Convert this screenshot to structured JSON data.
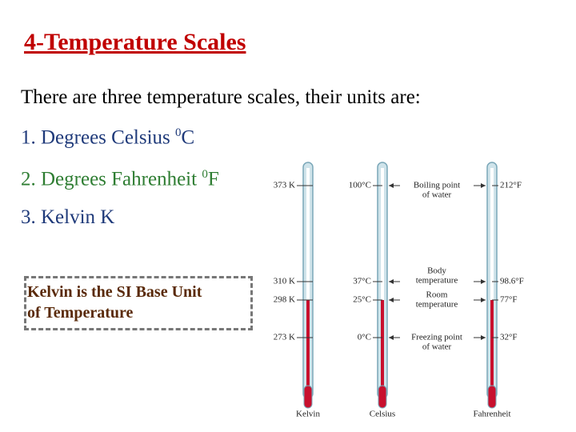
{
  "header": {
    "title": "4-Temperature Scales"
  },
  "intro": "There are three temperature scales, their units are:",
  "items": [
    {
      "text": "1. Degrees Celsius ",
      "sup": "0",
      "unit": "C"
    },
    {
      "text": "2. Degrees Fahrenheit ",
      "sup": "0",
      "unit": "F"
    },
    {
      "text": "3. Kelvin K"
    }
  ],
  "note": [
    "Kelvin is the SI Base Unit",
    "of Temperature"
  ],
  "diagram": {
    "thermometers": [
      "Kelvin",
      "Celsius",
      "Fahrenheit"
    ],
    "levels": [
      {
        "kelvin": "373 K",
        "celsius": "100°C",
        "fahrenheit": "212°F",
        "label": [
          "Boiling point",
          "of water"
        ]
      },
      {
        "kelvin": "310 K",
        "celsius": "37°C",
        "fahrenheit": "98.6°F",
        "label": [
          "Body",
          "temperature"
        ]
      },
      {
        "kelvin": "298 K",
        "celsius": "25°C",
        "fahrenheit": "77°F",
        "label": [
          "Room",
          "temperature"
        ]
      },
      {
        "kelvin": "273 K",
        "celsius": "0°C",
        "fahrenheit": "32°F",
        "label": [
          "Freezing point",
          "of water"
        ]
      }
    ]
  }
}
